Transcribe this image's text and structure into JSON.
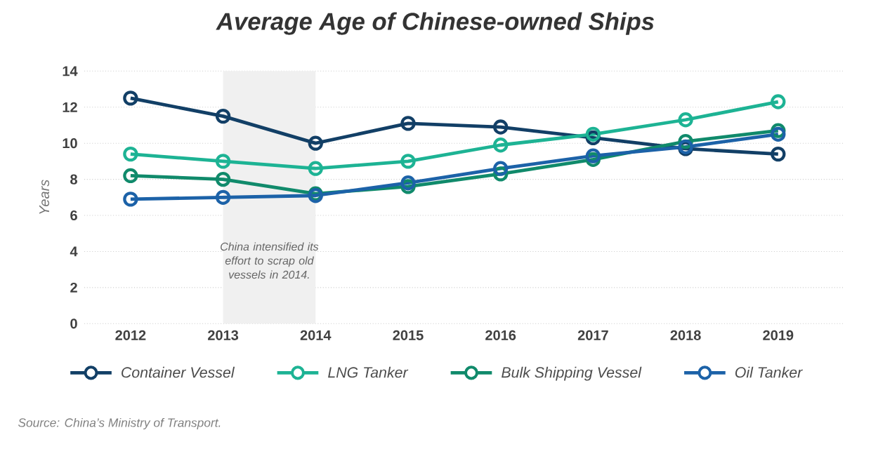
{
  "chart_data": {
    "type": "line",
    "title": "Average Age of Chinese-owned Ships",
    "ylabel": "Years",
    "x": [
      2012,
      2013,
      2014,
      2015,
      2016,
      2017,
      2018,
      2019
    ],
    "xlim": [
      2011.5,
      2019.7
    ],
    "xticks": [
      2012,
      2013,
      2014,
      2015,
      2016,
      2017,
      2018,
      2019
    ],
    "ylim": [
      0,
      14
    ],
    "yticks": [
      0,
      2,
      4,
      6,
      8,
      10,
      12,
      14
    ],
    "series": [
      {
        "name": "Container Vessel",
        "color": "#123f66",
        "values": [
          12.5,
          11.5,
          10.0,
          11.1,
          10.9,
          10.3,
          9.7,
          9.4
        ]
      },
      {
        "name": "LNG Tanker",
        "color": "#1db394",
        "values": [
          9.4,
          9.0,
          8.6,
          9.0,
          9.9,
          10.5,
          11.3,
          12.3
        ]
      },
      {
        "name": "Bulk Shipping Vessel",
        "color": "#108a6b",
        "values": [
          8.2,
          8.0,
          7.2,
          7.6,
          8.3,
          9.1,
          10.1,
          10.7
        ]
      },
      {
        "name": "Oil Tanker",
        "color": "#1c62a8",
        "values": [
          6.9,
          7.0,
          7.1,
          7.8,
          8.6,
          9.3,
          9.8,
          10.5
        ]
      }
    ],
    "bands": [
      {
        "axis": "x",
        "from": 2013,
        "to": 2014,
        "label": "China intensified its effort to scrap old vessels in 2014.",
        "color": "#f0f0f0"
      }
    ],
    "annotations": [
      "Source: China’s Ministry of Transport."
    ],
    "grid": "y",
    "legend": "bottom",
    "marker": "circle",
    "line_style": "solid"
  }
}
